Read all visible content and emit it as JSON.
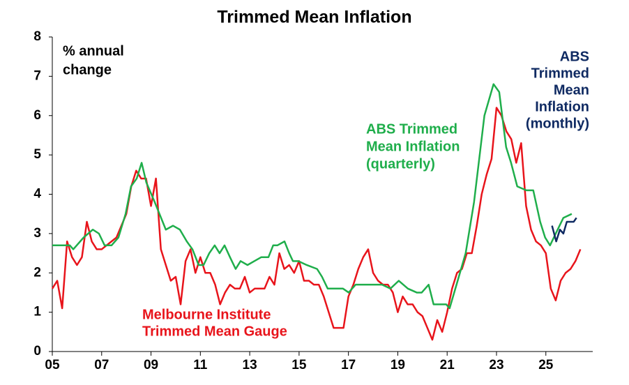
{
  "chart_data": {
    "type": "line",
    "title": "Trimmed Mean Inflation",
    "y_label": [
      "% annual",
      "change"
    ],
    "xlim": [
      2005,
      2026.9
    ],
    "ylim": [
      0,
      8
    ],
    "xticks": [
      {
        "value": 2005,
        "label": "05"
      },
      {
        "value": 2007,
        "label": "07"
      },
      {
        "value": 2009,
        "label": "09"
      },
      {
        "value": 2011,
        "label": "11"
      },
      {
        "value": 2013,
        "label": "13"
      },
      {
        "value": 2015,
        "label": "15"
      },
      {
        "value": 2017,
        "label": "17"
      },
      {
        "value": 2019,
        "label": "19"
      },
      {
        "value": 2021,
        "label": "21"
      },
      {
        "value": 2023,
        "label": "23"
      },
      {
        "value": 2025,
        "label": "25"
      }
    ],
    "yticks": [
      0,
      1,
      2,
      3,
      4,
      5,
      6,
      7,
      8
    ],
    "grid": false,
    "series": [
      {
        "name": [
          "Melbourne Institute",
          "Trimmed Mean Gauge"
        ],
        "color": "#e8141b",
        "x": [
          2005,
          2005.2,
          2005.4,
          2005.6,
          2005.8,
          2006,
          2006.2,
          2006.4,
          2006.6,
          2006.8,
          2007,
          2007.2,
          2007.4,
          2007.6,
          2007.8,
          2008,
          2008.2,
          2008.4,
          2008.6,
          2008.8,
          2009,
          2009.2,
          2009.4,
          2009.6,
          2009.8,
          2010,
          2010.2,
          2010.4,
          2010.6,
          2010.8,
          2011,
          2011.2,
          2011.4,
          2011.6,
          2011.8,
          2012,
          2012.2,
          2012.4,
          2012.6,
          2012.8,
          2013,
          2013.2,
          2013.4,
          2013.6,
          2013.8,
          2014,
          2014.2,
          2014.4,
          2014.6,
          2014.8,
          2015,
          2015.2,
          2015.4,
          2015.6,
          2015.8,
          2016,
          2016.2,
          2016.4,
          2016.6,
          2016.8,
          2017,
          2017.2,
          2017.4,
          2017.6,
          2017.8,
          2018,
          2018.2,
          2018.4,
          2018.6,
          2018.8,
          2019,
          2019.2,
          2019.4,
          2019.6,
          2019.8,
          2020,
          2020.2,
          2020.4,
          2020.6,
          2020.8,
          2021,
          2021.2,
          2021.4,
          2021.6,
          2021.8,
          2022,
          2022.2,
          2022.4,
          2022.6,
          2022.8,
          2023,
          2023.2,
          2023.4,
          2023.6,
          2023.8,
          2024,
          2024.2,
          2024.4,
          2024.6,
          2024.8,
          2025,
          2025.2,
          2025.4,
          2025.6,
          2025.8,
          2026,
          2026.2,
          2026.4
        ],
        "values": [
          1.6,
          1.8,
          1.1,
          2.8,
          2.4,
          2.2,
          2.4,
          3.3,
          2.8,
          2.6,
          2.6,
          2.7,
          2.8,
          2.9,
          3.2,
          3.5,
          4.2,
          4.6,
          4.4,
          4.4,
          3.7,
          4.4,
          2.6,
          2.2,
          1.8,
          1.9,
          1.2,
          2.3,
          2.6,
          2.0,
          2.4,
          2.0,
          2.0,
          1.7,
          1.2,
          1.5,
          1.7,
          1.6,
          1.6,
          1.9,
          1.5,
          1.6,
          1.6,
          1.6,
          1.9,
          1.7,
          2.5,
          2.1,
          2.2,
          2.0,
          2.3,
          1.8,
          1.8,
          1.7,
          1.7,
          1.4,
          1.0,
          0.6,
          0.6,
          0.6,
          1.4,
          1.7,
          2.1,
          2.4,
          2.6,
          2.0,
          1.8,
          1.7,
          1.7,
          1.5,
          1.0,
          1.4,
          1.2,
          1.2,
          1.0,
          0.9,
          0.6,
          0.3,
          0.8,
          0.5,
          1.0,
          1.6,
          2.0,
          2.1,
          2.5,
          2.5,
          3.2,
          4.0,
          4.5,
          4.9,
          6.2,
          6.0,
          5.6,
          5.4,
          4.8,
          5.3,
          3.7,
          3.1,
          2.8,
          2.7,
          2.5,
          1.6,
          1.3,
          1.8,
          2.0,
          2.1,
          2.3,
          2.6
        ]
      },
      {
        "name": [
          "ABS Trimmed",
          "Mean Inflation",
          "(quarterly)"
        ],
        "color": "#1fae4b",
        "x": [
          2005,
          2005.71,
          2005.85,
          2006.27,
          2006.64,
          2006.89,
          2007.12,
          2007.4,
          2007.68,
          2007.97,
          2008.19,
          2008.42,
          2008.62,
          2008.81,
          2009.15,
          2009.6,
          2009.89,
          2010.17,
          2010.45,
          2010.68,
          2010.93,
          2011.13,
          2011.36,
          2011.58,
          2011.78,
          2011.98,
          2012.2,
          2012.43,
          2012.63,
          2012.91,
          2013.19,
          2013.47,
          2013.76,
          2013.95,
          2014.12,
          2014.41,
          2014.6,
          2014.75,
          2014.97,
          2015.31,
          2015.73,
          2015.93,
          2016.16,
          2016.44,
          2016.78,
          2017.01,
          2017.29,
          2017.85,
          2018.36,
          2018.7,
          2019.04,
          2019.41,
          2019.77,
          2019.97,
          2020.25,
          2020.45,
          2020.96,
          2021.1,
          2021.38,
          2021.75,
          2022.09,
          2022.51,
          2022.88,
          2023.11,
          2023.39,
          2023.59,
          2023.84,
          2024.21,
          2024.49,
          2024.77,
          2024.97,
          2025.17,
          2025.4,
          2025.71,
          2026.05
        ],
        "values": [
          2.7,
          2.7,
          2.6,
          2.9,
          3.1,
          3.0,
          2.7,
          2.7,
          2.9,
          3.5,
          4.2,
          4.4,
          4.8,
          4.3,
          3.8,
          3.1,
          3.2,
          3.1,
          2.8,
          2.6,
          2.2,
          2.2,
          2.5,
          2.7,
          2.5,
          2.7,
          2.4,
          2.1,
          2.3,
          2.2,
          2.3,
          2.4,
          2.4,
          2.7,
          2.7,
          2.8,
          2.5,
          2.3,
          2.3,
          2.2,
          2.1,
          1.9,
          1.6,
          1.6,
          1.6,
          1.5,
          1.7,
          1.7,
          1.7,
          1.6,
          1.8,
          1.6,
          1.5,
          1.5,
          1.7,
          1.2,
          1.2,
          1.1,
          1.7,
          2.5,
          3.8,
          6.0,
          6.8,
          6.6,
          5.2,
          4.8,
          4.2,
          4.1,
          4.1,
          3.3,
          2.9,
          2.7,
          3.0,
          3.4,
          3.5
        ]
      },
      {
        "name": [
          "ABS",
          "Trimmed",
          "Mean",
          "Inflation",
          "(monthly)"
        ],
        "color": "#0f2a62",
        "x": [
          2025.25,
          2025.42,
          2025.57,
          2025.71,
          2025.85,
          2025.99,
          2026.13,
          2026.24
        ],
        "values": [
          3.2,
          2.8,
          3.1,
          3.0,
          3.3,
          3.3,
          3.3,
          3.4
        ]
      }
    ]
  }
}
